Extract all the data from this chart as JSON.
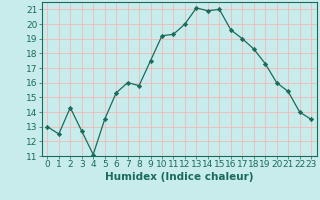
{
  "x": [
    0,
    1,
    2,
    3,
    4,
    5,
    6,
    7,
    8,
    9,
    10,
    11,
    12,
    13,
    14,
    15,
    16,
    17,
    18,
    19,
    20,
    21,
    22,
    23
  ],
  "y": [
    13,
    12.5,
    14.3,
    12.7,
    11.1,
    13.5,
    15.3,
    16.0,
    15.8,
    17.5,
    19.2,
    19.3,
    20.0,
    21.1,
    20.9,
    21.0,
    19.6,
    19.0,
    18.3,
    17.3,
    16.0,
    15.4,
    14.0,
    13.5
  ],
  "line_color": "#1a6b5a",
  "marker": "D",
  "marker_size": 2.2,
  "bg_color": "#c8ecec",
  "grid_color": "#f5b8b8",
  "xlabel": "Humidex (Indice chaleur)",
  "ylabel_ticks": [
    11,
    12,
    13,
    14,
    15,
    16,
    17,
    18,
    19,
    20,
    21
  ],
  "xlim": [
    -0.5,
    23.5
  ],
  "ylim": [
    11,
    21.5
  ],
  "tick_color": "#1a6b5a",
  "label_fontsize": 7.5,
  "tick_fontsize": 6.5
}
